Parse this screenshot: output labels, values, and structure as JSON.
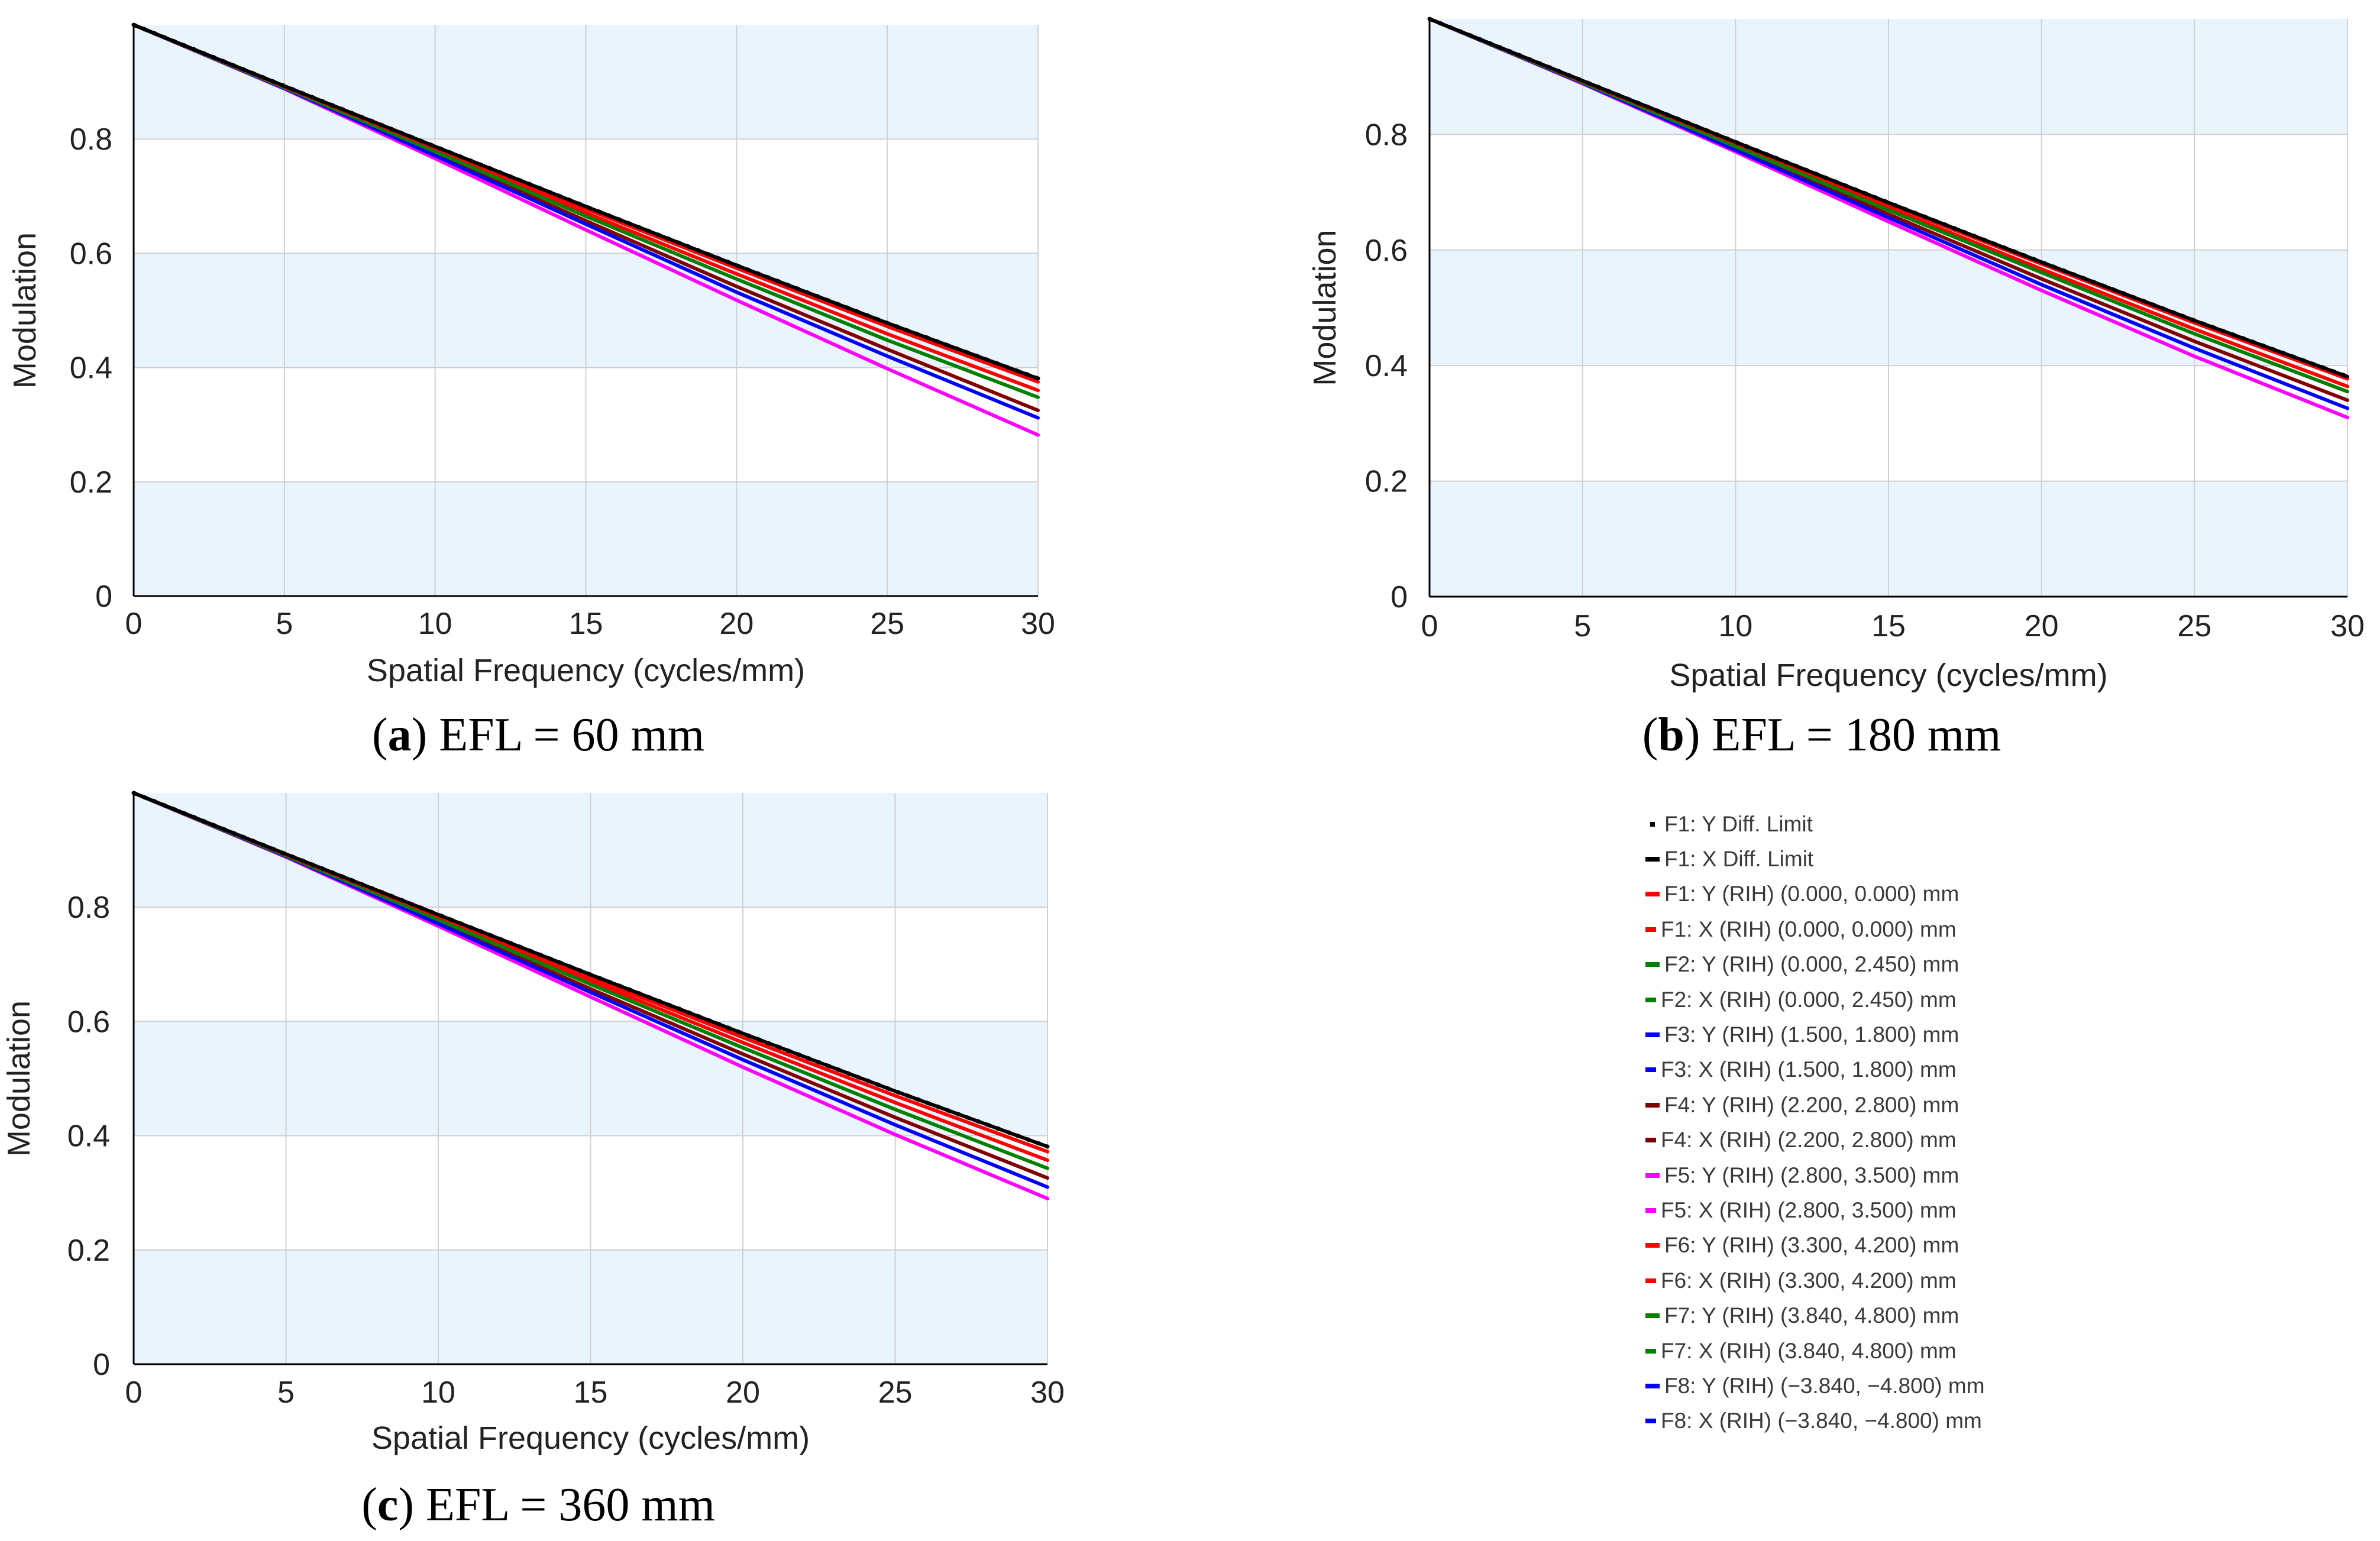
{
  "chart_data": [
    {
      "id": "a",
      "type": "line",
      "caption_letter": "a",
      "caption_text": "EFL = 60 mm",
      "xlabel": "Spatial Frequency (cycles/mm)",
      "ylabel": "Modulation",
      "xlim": [
        0,
        30
      ],
      "ylim": [
        0,
        1
      ],
      "x_ticks": [
        "0",
        "5",
        "10",
        "15",
        "20",
        "25",
        "30"
      ],
      "y_ticks": [
        "0",
        "0.2",
        "0.4",
        "0.6",
        "0.8"
      ],
      "x": [
        0,
        5,
        10,
        15,
        20,
        25,
        30
      ],
      "series": [
        {
          "name": "F1: Y Diff. Limit",
          "values": [
            1.0,
            0.893,
            0.787,
            0.682,
            0.579,
            0.478,
            0.381
          ]
        },
        {
          "name": "F1: X Diff. Limit",
          "values": [
            1.0,
            0.893,
            0.787,
            0.682,
            0.579,
            0.478,
            0.381
          ]
        },
        {
          "name": "F1: Y (RIH) (0.000, 0.000) mm",
          "values": [
            1.0,
            0.892,
            0.784,
            0.678,
            0.574,
            0.472,
            0.375
          ]
        },
        {
          "name": "F2: Y (RIH) (0.000, 2.450) mm",
          "values": [
            1.0,
            0.89,
            0.778,
            0.665,
            0.555,
            0.448,
            0.348
          ]
        },
        {
          "name": "F3: Y (RIH) (1.500, 1.800) mm",
          "values": [
            1.0,
            0.889,
            0.771,
            0.651,
            0.532,
            0.42,
            0.312
          ]
        },
        {
          "name": "F4: Y (RIH) (2.200, 2.800) mm",
          "values": [
            1.0,
            0.89,
            0.774,
            0.657,
            0.542,
            0.432,
            0.325
          ]
        },
        {
          "name": "F5: Y (RIH) (2.800, 3.500) mm",
          "values": [
            1.0,
            0.888,
            0.766,
            0.641,
            0.518,
            0.398,
            0.282
          ]
        },
        {
          "name": "F6: Y (RIH) (3.300, 4.200) mm",
          "values": [
            1.0,
            0.891,
            0.781,
            0.671,
            0.564,
            0.459,
            0.36
          ]
        }
      ]
    },
    {
      "id": "b",
      "type": "line",
      "caption_letter": "b",
      "caption_text": "EFL = 180 mm",
      "xlabel": "Spatial Frequency (cycles/mm)",
      "ylabel": "Modulation",
      "xlim": [
        0,
        30
      ],
      "ylim": [
        0,
        1
      ],
      "x_ticks": [
        "0",
        "5",
        "10",
        "15",
        "20",
        "25",
        "30"
      ],
      "y_ticks": [
        "0",
        "0.2",
        "0.4",
        "0.6",
        "0.8"
      ],
      "x": [
        0,
        5,
        10,
        15,
        20,
        25,
        30
      ],
      "series": [
        {
          "name": "F1: Y Diff. Limit",
          "values": [
            1.0,
            0.893,
            0.787,
            0.682,
            0.579,
            0.478,
            0.381
          ]
        },
        {
          "name": "F1: X Diff. Limit",
          "values": [
            1.0,
            0.893,
            0.787,
            0.682,
            0.579,
            0.478,
            0.381
          ]
        },
        {
          "name": "F1: Y (RIH) (0.000, 0.000) mm",
          "values": [
            1.0,
            0.892,
            0.785,
            0.679,
            0.576,
            0.474,
            0.377
          ]
        },
        {
          "name": "F2: Y (RIH) (0.000, 2.450) mm",
          "values": [
            1.0,
            0.89,
            0.779,
            0.669,
            0.561,
            0.455,
            0.355
          ]
        },
        {
          "name": "F3: Y (RIH) (1.500, 1.800) mm",
          "values": [
            1.0,
            0.889,
            0.773,
            0.656,
            0.54,
            0.43,
            0.326
          ]
        },
        {
          "name": "F4: Y (RIH) (2.200, 2.800) mm",
          "values": [
            1.0,
            0.89,
            0.776,
            0.662,
            0.55,
            0.442,
            0.34
          ]
        },
        {
          "name": "F5: Y (RIH) (2.800, 3.500) mm",
          "values": [
            1.0,
            0.888,
            0.77,
            0.649,
            0.53,
            0.416,
            0.31
          ]
        },
        {
          "name": "F6: Y (RIH) (3.300, 4.200) mm",
          "values": [
            1.0,
            0.891,
            0.782,
            0.673,
            0.567,
            0.463,
            0.364
          ]
        }
      ]
    },
    {
      "id": "c",
      "type": "line",
      "caption_letter": "c",
      "caption_text": "EFL = 360 mm",
      "xlabel": "Spatial Frequency (cycles/mm)",
      "ylabel": "Modulation",
      "xlim": [
        0,
        30
      ],
      "ylim": [
        0,
        1
      ],
      "x_ticks": [
        "0",
        "5",
        "10",
        "15",
        "20",
        "25",
        "30"
      ],
      "y_ticks": [
        "0",
        "0.2",
        "0.4",
        "0.6",
        "0.8"
      ],
      "x": [
        0,
        5,
        10,
        15,
        20,
        25,
        30
      ],
      "series": [
        {
          "name": "F1: Y Diff. Limit",
          "values": [
            1.0,
            0.893,
            0.787,
            0.682,
            0.579,
            0.478,
            0.381
          ]
        },
        {
          "name": "F1: X Diff. Limit",
          "values": [
            1.0,
            0.893,
            0.787,
            0.682,
            0.579,
            0.478,
            0.381
          ]
        },
        {
          "name": "F1: Y (RIH) (0.000, 0.000) mm",
          "values": [
            1.0,
            0.892,
            0.784,
            0.677,
            0.572,
            0.47,
            0.372
          ]
        },
        {
          "name": "F2: Y (RIH) (0.000, 2.450) mm",
          "values": [
            1.0,
            0.89,
            0.778,
            0.665,
            0.554,
            0.446,
            0.343
          ]
        },
        {
          "name": "F3: Y (RIH) (1.500, 1.800) mm",
          "values": [
            1.0,
            0.889,
            0.771,
            0.651,
            0.533,
            0.419,
            0.31
          ]
        },
        {
          "name": "F4: Y (RIH) (2.200, 2.800) mm",
          "values": [
            1.0,
            0.89,
            0.774,
            0.657,
            0.543,
            0.432,
            0.326
          ]
        },
        {
          "name": "F5: Y (RIH) (2.800, 3.500) mm",
          "values": [
            1.0,
            0.888,
            0.767,
            0.643,
            0.52,
            0.402,
            0.29
          ]
        },
        {
          "name": "F6: Y (RIH) (3.300, 4.200) mm",
          "values": [
            1.0,
            0.891,
            0.781,
            0.671,
            0.563,
            0.458,
            0.357
          ]
        }
      ]
    }
  ],
  "legend": [
    {
      "label": "F1: Y Diff. Limit",
      "color": "#000000",
      "style": "dot"
    },
    {
      "label": "F1: X Diff. Limit",
      "color": "#000000",
      "style": "solid"
    },
    {
      "label": "F1: Y (RIH) (0.000, 0.000) mm",
      "color": "#ff0000",
      "style": "solid"
    },
    {
      "label": "F1: X (RIH) (0.000, 0.000) mm",
      "color": "#ff0000",
      "style": "dash"
    },
    {
      "label": "F2: Y (RIH) (0.000, 2.450) mm",
      "color": "#008000",
      "style": "solid"
    },
    {
      "label": "F2: X (RIH) (0.000, 2.450) mm",
      "color": "#008000",
      "style": "dash"
    },
    {
      "label": "F3: Y (RIH) (1.500, 1.800) mm",
      "color": "#0000ff",
      "style": "solid"
    },
    {
      "label": "F3: X (RIH) (1.500, 1.800) mm",
      "color": "#0000ff",
      "style": "dash"
    },
    {
      "label": "F4: Y (RIH) (2.200, 2.800) mm",
      "color": "#800000",
      "style": "solid"
    },
    {
      "label": "F4: X (RIH) (2.200, 2.800) mm",
      "color": "#800000",
      "style": "dash"
    },
    {
      "label": "F5: Y (RIH) (2.800, 3.500) mm",
      "color": "#ff00ff",
      "style": "solid"
    },
    {
      "label": "F5: X (RIH) (2.800, 3.500) mm",
      "color": "#ff00ff",
      "style": "dash"
    },
    {
      "label": "F6: Y (RIH) (3.300, 4.200) mm",
      "color": "#ff0000",
      "style": "solid"
    },
    {
      "label": "F6: X (RIH) (3.300, 4.200) mm",
      "color": "#ff0000",
      "style": "dash"
    },
    {
      "label": "F7: Y (RIH) (3.840, 4.800) mm",
      "color": "#008000",
      "style": "solid"
    },
    {
      "label": "F7: X (RIH) (3.840, 4.800) mm",
      "color": "#008000",
      "style": "dash"
    },
    {
      "label": "F8: Y (RIH) (−3.840, −4.800) mm",
      "color": "#0000ff",
      "style": "solid"
    },
    {
      "label": "F8: X (RIH) (−3.840, −4.800) mm",
      "color": "#0000ff",
      "style": "dash"
    }
  ],
  "series_colors": [
    "#000000",
    "#000000",
    "#ff0000",
    "#008000",
    "#0000ff",
    "#800000",
    "#ff00ff",
    "#ff0000"
  ],
  "colors": {
    "band": "#eaf4fd",
    "grid": "#d0d0d0",
    "axis": "#000000",
    "tick_text": "#222222"
  }
}
